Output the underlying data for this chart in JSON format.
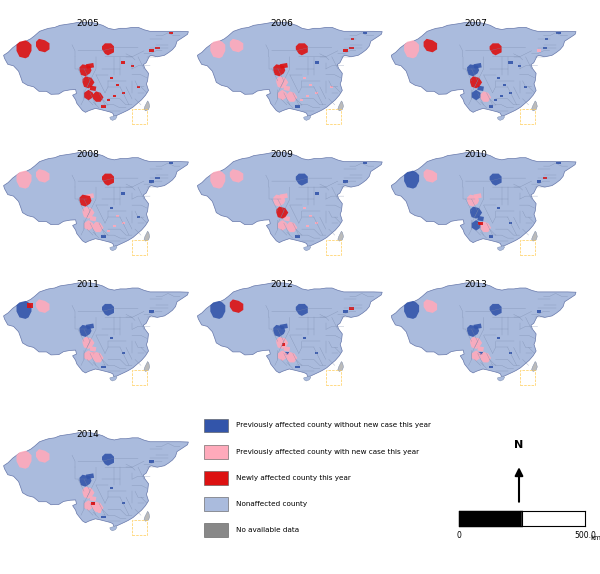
{
  "title": "",
  "years": [
    "2005",
    "2006",
    "2007",
    "2008",
    "2009",
    "2010",
    "2011",
    "2012",
    "2013",
    "2014"
  ],
  "colors": {
    "previously_no_new": "#3355AA",
    "previously_with_new": "#FFAABB",
    "newly_affected": "#DD1111",
    "nonaffected": "#AABBDD",
    "no_data": "#888888",
    "background": "#FFFFFF",
    "border": "#7788AA",
    "outer_border": "#6677AA"
  },
  "legend_items": [
    {
      "label": "Previously affected county without new case this year",
      "color": "#3355AA"
    },
    {
      "label": "Previously affected county with new case this year",
      "color": "#FFAABB"
    },
    {
      "label": "Newly affected county this year",
      "color": "#DD1111"
    },
    {
      "label": "Nonaffected county",
      "color": "#AABBDD"
    },
    {
      "label": "No available data",
      "color": "#888888"
    }
  ],
  "layout": {
    "fig_width": 6.0,
    "fig_height": 5.74,
    "dpi": 100
  }
}
